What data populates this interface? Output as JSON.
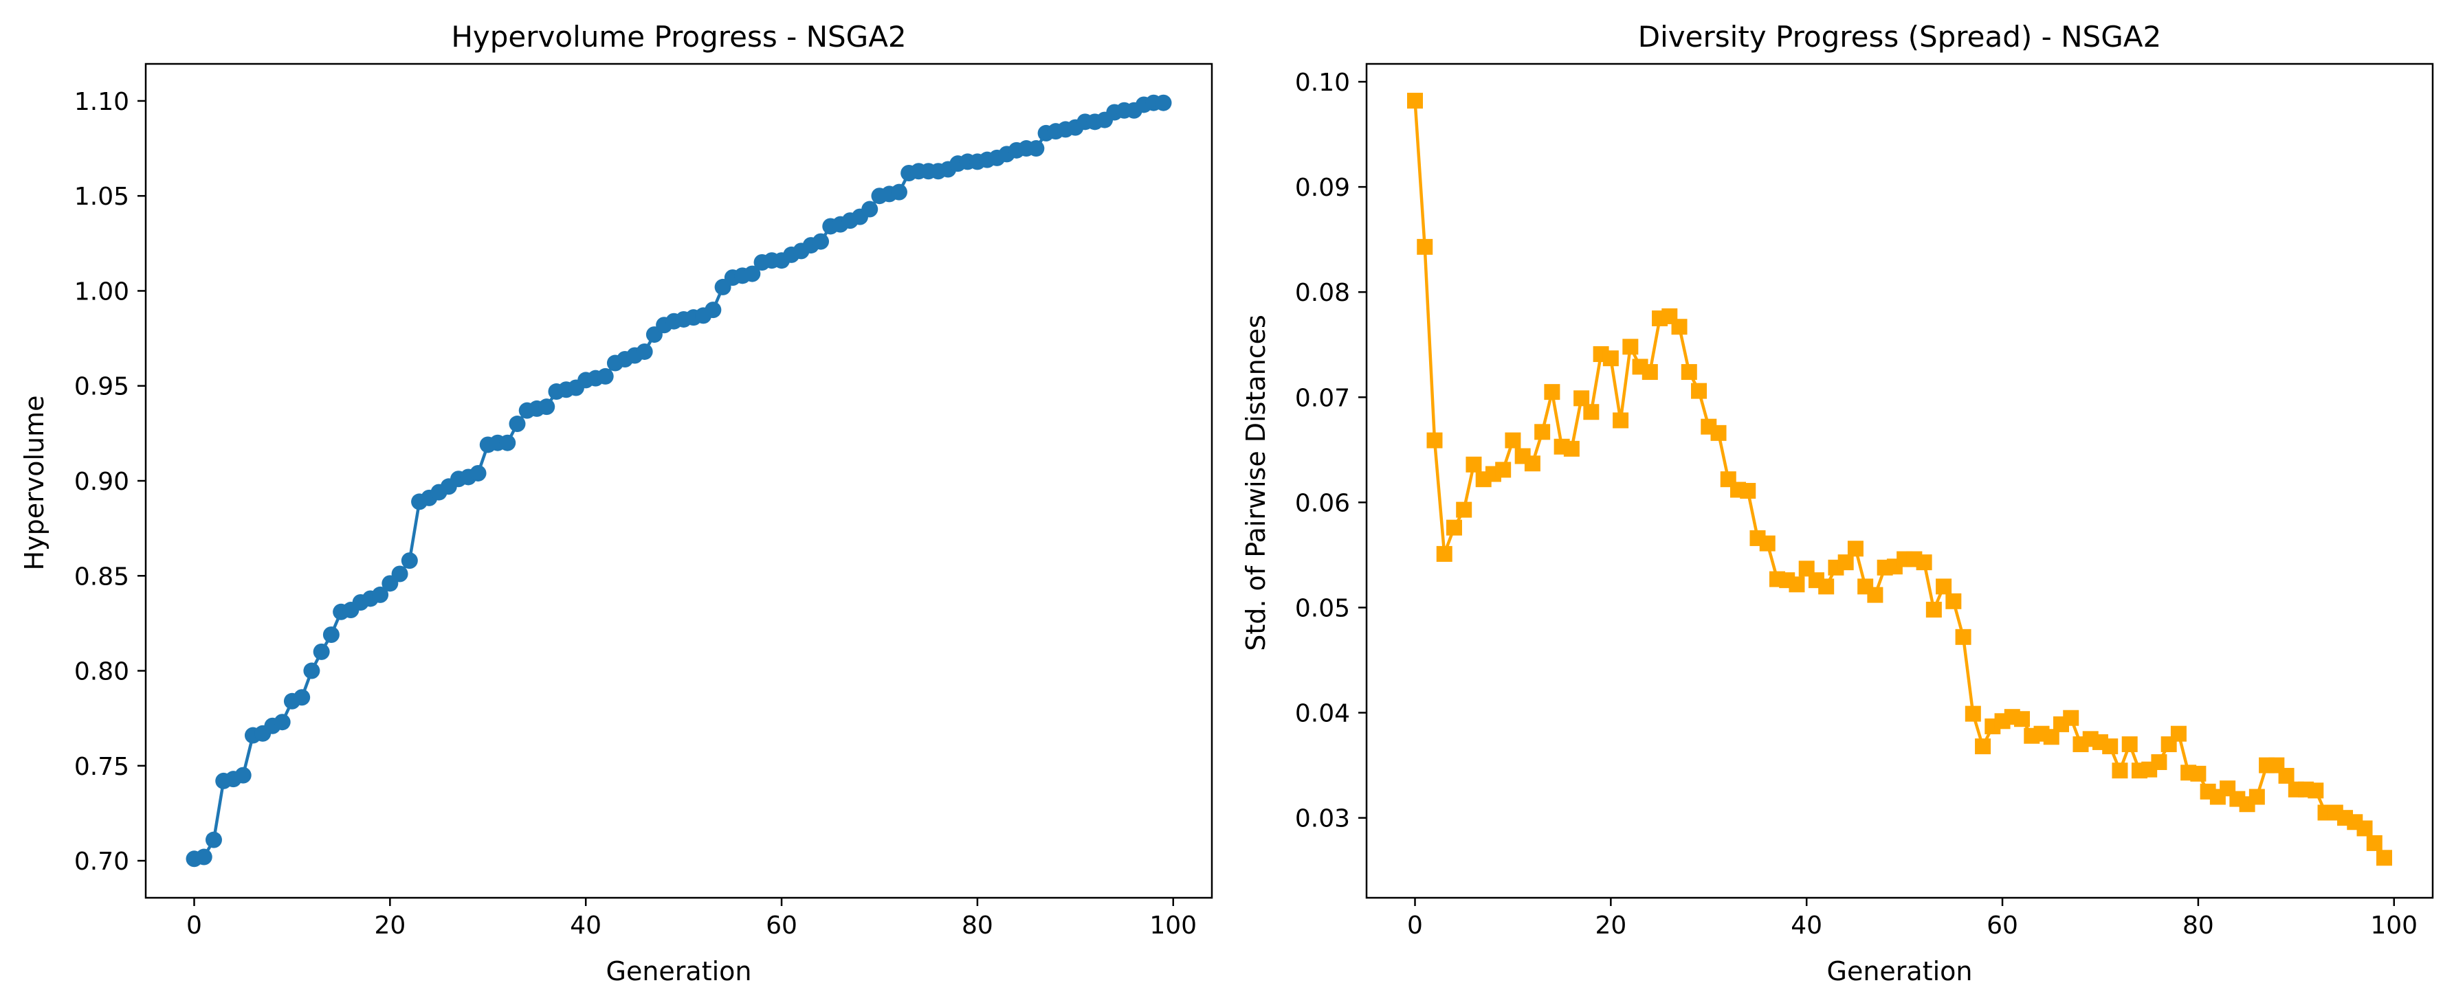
{
  "chart_data": [
    {
      "type": "line",
      "title": "Hypervolume Progress - NSGA2",
      "xlabel": "Generation",
      "ylabel": "Hypervolume",
      "xlim": [
        -4.95,
        103.95
      ],
      "ylim": [
        0.6805,
        1.1195
      ],
      "xticks": [
        0,
        20,
        40,
        60,
        80,
        100
      ],
      "xtick_labels": [
        "0",
        "20",
        "40",
        "60",
        "80",
        "100"
      ],
      "yticks": [
        0.7,
        0.75,
        0.8,
        0.85,
        0.9,
        0.95,
        1.0,
        1.05,
        1.1
      ],
      "ytick_labels": [
        "0.70",
        "0.75",
        "0.80",
        "0.85",
        "0.90",
        "0.95",
        "1.00",
        "1.05",
        "1.10"
      ],
      "grid": false,
      "marker": "circle",
      "color": "#1f77b4",
      "series": [
        {
          "x": [
            0,
            1,
            2,
            3,
            4,
            5,
            6,
            7,
            8,
            9,
            10,
            11,
            12,
            13,
            14,
            15,
            16,
            17,
            18,
            19,
            20,
            21,
            22,
            23,
            24,
            25,
            26,
            27,
            28,
            29,
            30,
            31,
            32,
            33,
            34,
            35,
            36,
            37,
            38,
            39,
            40,
            41,
            42,
            43,
            44,
            45,
            46,
            47,
            48,
            49,
            50,
            51,
            52,
            53,
            54,
            55,
            56,
            57,
            58,
            59,
            60,
            61,
            62,
            63,
            64,
            65,
            66,
            67,
            68,
            69,
            70,
            71,
            72,
            73,
            74,
            75,
            76,
            77,
            78,
            79,
            80,
            81,
            82,
            83,
            84,
            85,
            86,
            87,
            88,
            89,
            90,
            91,
            92,
            93,
            94,
            95,
            96,
            97,
            98,
            99
          ],
          "values": [
            0.701,
            0.702,
            0.711,
            0.742,
            0.743,
            0.745,
            0.766,
            0.767,
            0.771,
            0.773,
            0.784,
            0.786,
            0.8,
            0.81,
            0.819,
            0.831,
            0.832,
            0.836,
            0.838,
            0.84,
            0.846,
            0.851,
            0.858,
            0.889,
            0.891,
            0.894,
            0.897,
            0.901,
            0.902,
            0.904,
            0.919,
            0.92,
            0.92,
            0.93,
            0.937,
            0.938,
            0.939,
            0.947,
            0.948,
            0.949,
            0.953,
            0.954,
            0.955,
            0.962,
            0.964,
            0.966,
            0.968,
            0.977,
            0.982,
            0.984,
            0.985,
            0.986,
            0.987,
            0.99,
            1.002,
            1.007,
            1.008,
            1.009,
            1.015,
            1.016,
            1.016,
            1.019,
            1.021,
            1.024,
            1.026,
            1.034,
            1.035,
            1.037,
            1.039,
            1.043,
            1.05,
            1.051,
            1.052,
            1.062,
            1.063,
            1.063,
            1.063,
            1.064,
            1.067,
            1.068,
            1.068,
            1.069,
            1.07,
            1.072,
            1.074,
            1.075,
            1.075,
            1.083,
            1.084,
            1.085,
            1.086,
            1.089,
            1.089,
            1.09,
            1.094,
            1.095,
            1.095,
            1.098,
            1.099,
            1.099
          ]
        }
      ]
    },
    {
      "type": "line",
      "title": "Diversity Progress (Spread) - NSGA2",
      "xlabel": "Generation",
      "ylabel": "Std. of Pairwise Distances",
      "xlim": [
        -4.95,
        103.95
      ],
      "ylim": [
        0.0224,
        0.1017
      ],
      "xticks": [
        0,
        20,
        40,
        60,
        80,
        100
      ],
      "xtick_labels": [
        "0",
        "20",
        "40",
        "60",
        "80",
        "100"
      ],
      "yticks": [
        0.03,
        0.04,
        0.05,
        0.06,
        0.07,
        0.08,
        0.09,
        0.1
      ],
      "ytick_labels": [
        "0.03",
        "0.04",
        "0.05",
        "0.06",
        "0.07",
        "0.08",
        "0.09",
        "0.10"
      ],
      "grid": false,
      "marker": "square",
      "color": "#ffa500",
      "series": [
        {
          "x": [
            0,
            1,
            2,
            3,
            4,
            5,
            6,
            7,
            8,
            9,
            10,
            11,
            12,
            13,
            14,
            15,
            16,
            17,
            18,
            19,
            20,
            21,
            22,
            23,
            24,
            25,
            26,
            27,
            28,
            29,
            30,
            31,
            32,
            33,
            34,
            35,
            36,
            37,
            38,
            39,
            40,
            41,
            42,
            43,
            44,
            45,
            46,
            47,
            48,
            49,
            50,
            51,
            52,
            53,
            54,
            55,
            56,
            57,
            58,
            59,
            60,
            61,
            62,
            63,
            64,
            65,
            66,
            67,
            68,
            69,
            70,
            71,
            72,
            73,
            74,
            75,
            76,
            77,
            78,
            79,
            80,
            81,
            82,
            83,
            84,
            85,
            86,
            87,
            88,
            89,
            90,
            91,
            92,
            93,
            94,
            95,
            96,
            97,
            98,
            99
          ],
          "values": [
            0.0982,
            0.0843,
            0.0659,
            0.0551,
            0.0576,
            0.0593,
            0.0636,
            0.0622,
            0.0627,
            0.0631,
            0.0659,
            0.0644,
            0.0637,
            0.0667,
            0.0705,
            0.0653,
            0.0651,
            0.0699,
            0.0686,
            0.0741,
            0.0737,
            0.0678,
            0.0748,
            0.0729,
            0.0724,
            0.0775,
            0.0777,
            0.0767,
            0.0724,
            0.0706,
            0.0672,
            0.0666,
            0.0622,
            0.0612,
            0.0611,
            0.0566,
            0.0561,
            0.0527,
            0.0526,
            0.0522,
            0.0537,
            0.0526,
            0.052,
            0.0538,
            0.0543,
            0.0556,
            0.052,
            0.0512,
            0.0538,
            0.0539,
            0.0546,
            0.0546,
            0.0543,
            0.0498,
            0.052,
            0.0506,
            0.0472,
            0.0399,
            0.0368,
            0.0387,
            0.0392,
            0.0396,
            0.0394,
            0.0378,
            0.038,
            0.0377,
            0.0389,
            0.0395,
            0.037,
            0.0375,
            0.0372,
            0.0368,
            0.0345,
            0.037,
            0.0345,
            0.0346,
            0.0353,
            0.037,
            0.038,
            0.0343,
            0.0342,
            0.0325,
            0.032,
            0.0328,
            0.0318,
            0.0313,
            0.032,
            0.035,
            0.035,
            0.034,
            0.0327,
            0.0327,
            0.0326,
            0.0305,
            0.0305,
            0.03,
            0.0296,
            0.029,
            0.0276,
            0.0262
          ]
        }
      ]
    }
  ]
}
